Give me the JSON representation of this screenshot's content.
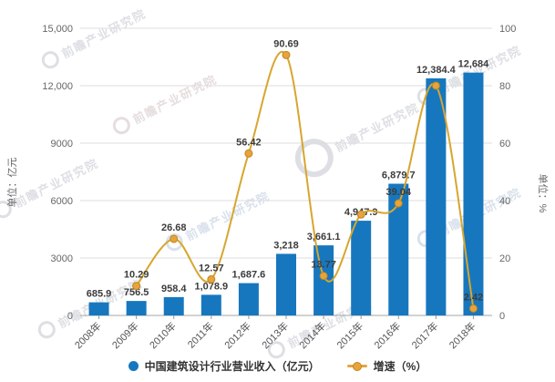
{
  "watermark": {
    "text": "前瞻产业研究院"
  },
  "chart_data": {
    "type": "bar+line",
    "categories": [
      "2008年",
      "2009年",
      "2010年",
      "2011年",
      "2012年",
      "2013年",
      "2014年",
      "2015年",
      "2016年",
      "2017年",
      "2018年"
    ],
    "series": [
      {
        "name": "中国建筑设计行业营业收入（亿元）",
        "type": "bar",
        "axis": "left",
        "color": "#1777BE",
        "values": [
          685.9,
          756.5,
          958.4,
          1078.9,
          1687.6,
          3218,
          3661.1,
          4947.9,
          6879.7,
          12384.4,
          12684
        ],
        "labels": [
          "685.9",
          "756.5",
          "958.4",
          "1,078.9",
          "1,687.6",
          "3,218",
          "3,661.1",
          "4,947.9",
          "6,879.7",
          "12,384.4",
          "12,684"
        ]
      },
      {
        "name": "增速（%）",
        "type": "line",
        "axis": "right",
        "color": "#D7A62F",
        "marker_fill": "#E7A33C",
        "marker_stroke": "#BF861E",
        "start_index": 1,
        "values": [
          10.29,
          26.68,
          12.57,
          56.42,
          90.69,
          13.77,
          35.15,
          39.04,
          80.01,
          2.42
        ],
        "labels": [
          "10.29",
          "26.68",
          "12.57",
          "56.42",
          "90.69",
          "13.77",
          null,
          "39.04",
          null,
          "2.42"
        ]
      }
    ],
    "left_axis": {
      "title": "单位：亿元",
      "ticks": [
        "0",
        "3000",
        "6000",
        "9000",
        "12,000",
        "15,000"
      ],
      "min": 0,
      "max": 15000
    },
    "right_axis": {
      "title": "单位：%",
      "ticks": [
        "0",
        "20",
        "40",
        "60",
        "80",
        "100"
      ],
      "min": 0,
      "max": 100
    },
    "legend": [
      {
        "label": "中国建筑设计行业营业收入（亿元）"
      },
      {
        "label": "增速（%）"
      }
    ],
    "grid": true,
    "legend_position": "bottom-center"
  }
}
